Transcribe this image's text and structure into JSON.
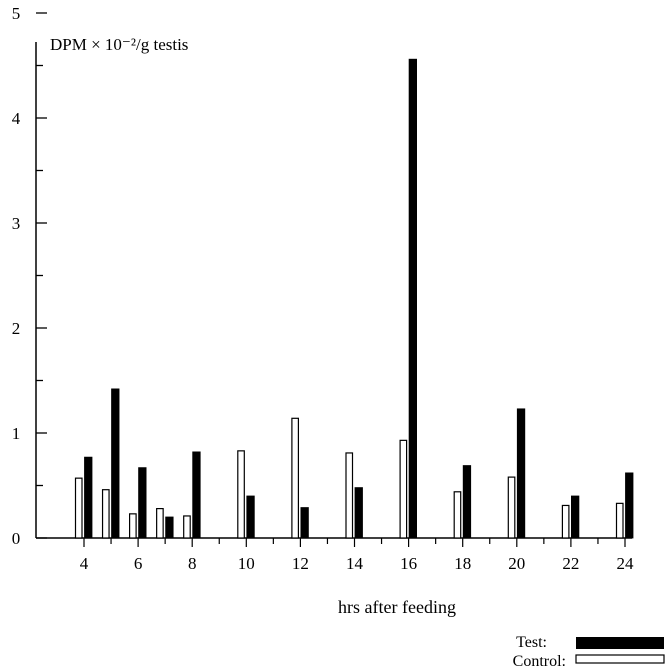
{
  "chart_data": {
    "type": "bar",
    "title": "",
    "annotation": "DPM × 10⁻²/g testis",
    "xlabel": "hrs after feeding",
    "ylabel": "",
    "ylim": [
      0,
      5
    ],
    "yticks": [
      "0",
      "1",
      "2",
      "3",
      "4",
      "5"
    ],
    "xticks": [
      "4",
      "6",
      "8",
      "10",
      "12",
      "14",
      "16",
      "18",
      "20",
      "22",
      "24"
    ],
    "xlim": [
      2.5,
      25
    ],
    "legend_position": "bottom-right",
    "series": [
      {
        "name": "Control:",
        "style": "open",
        "x": [
          4,
          5,
          6,
          7,
          8,
          10,
          12,
          14,
          16,
          18,
          20,
          22,
          24
        ],
        "values": [
          0.57,
          0.46,
          0.23,
          0.28,
          0.21,
          0.83,
          1.14,
          0.81,
          0.93,
          0.44,
          0.58,
          0.31,
          0.33
        ]
      },
      {
        "name": "Test:",
        "style": "filled",
        "x": [
          4,
          5,
          6,
          7,
          8,
          10,
          12,
          14,
          16,
          18,
          20,
          22,
          24
        ],
        "values": [
          0.77,
          1.42,
          0.67,
          0.2,
          0.82,
          0.4,
          0.29,
          0.48,
          4.56,
          0.69,
          1.23,
          0.4,
          0.62
        ]
      }
    ],
    "colors": {
      "ink": "#000000",
      "paper": "#ffffff"
    }
  }
}
